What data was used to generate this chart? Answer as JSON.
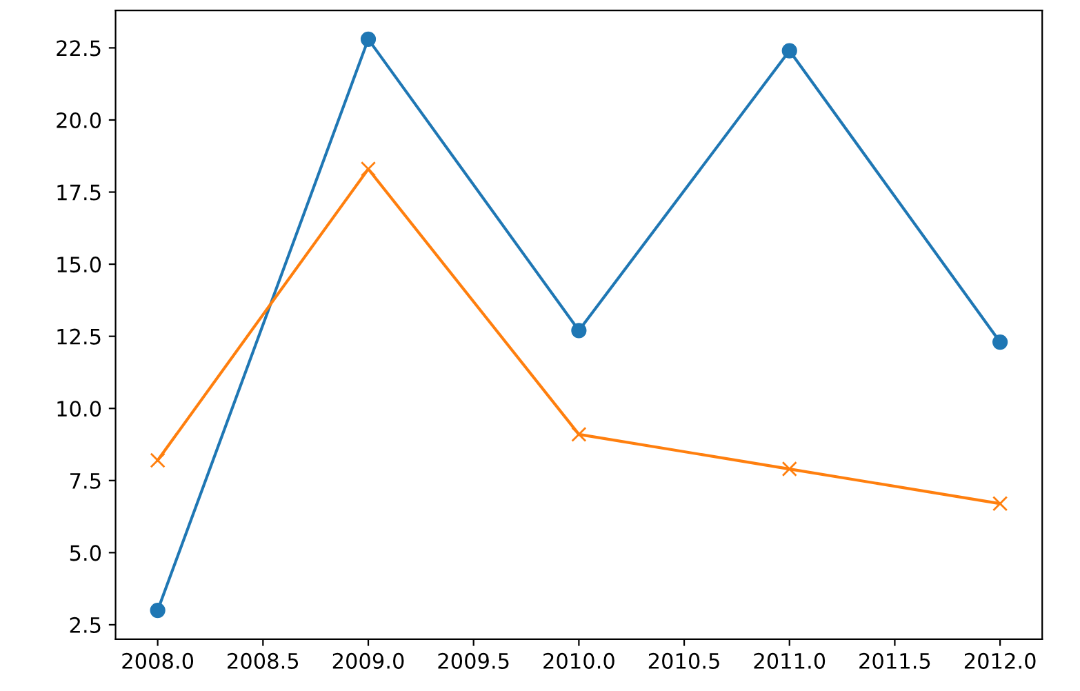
{
  "chart_data": {
    "type": "line",
    "x": [
      2008,
      2009,
      2010,
      2011,
      2012
    ],
    "series": [
      {
        "color": "#1f77b4",
        "marker": "circle",
        "values": [
          3.0,
          22.8,
          12.7,
          22.4,
          12.3
        ]
      },
      {
        "color": "#ff7f0e",
        "marker": "cross",
        "values": [
          8.2,
          18.3,
          9.1,
          7.9,
          6.7
        ]
      }
    ],
    "xlim": [
      2007.8,
      2012.2
    ],
    "xticks": [
      {
        "value": 2008,
        "label": "2008.0"
      },
      {
        "value": 2008.5,
        "label": "2008.5"
      },
      {
        "value": 2009,
        "label": "2009.0"
      },
      {
        "value": 2009.5,
        "label": "2009.5"
      },
      {
        "value": 2010,
        "label": "2010.0"
      },
      {
        "value": 2010.5,
        "label": "2010.5"
      },
      {
        "value": 2011,
        "label": "2011.0"
      },
      {
        "value": 2011.5,
        "label": "2011.5"
      },
      {
        "value": 2012,
        "label": "2012.0"
      }
    ],
    "ylim": [
      2.0,
      23.8
    ],
    "yticks": [
      2.5,
      {
        "value": 5,
        "label": "5.0"
      },
      7.5,
      {
        "value": 10,
        "label": "10.0"
      },
      12.5,
      {
        "value": 15,
        "label": "15.0"
      },
      17.5,
      {
        "value": 20,
        "label": "20.0"
      },
      22.5
    ],
    "grid": false,
    "line_style": "solid"
  }
}
